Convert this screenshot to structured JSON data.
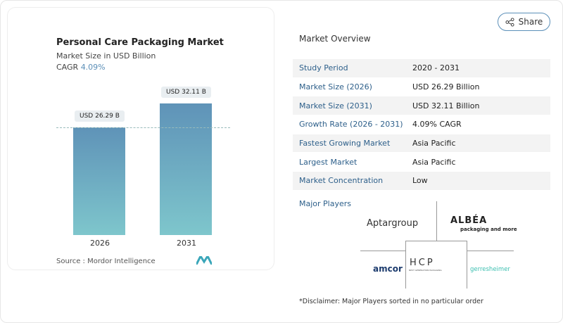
{
  "chart_data": {
    "type": "bar",
    "title": "Personal Care Packaging Market",
    "subtitle": "Market Size in USD Billion",
    "cagr_label": "CAGR",
    "cagr_value": "4.09%",
    "categories": [
      "2026",
      "2031"
    ],
    "values": [
      26.29,
      32.11
    ],
    "data_labels": [
      "USD 26.29 B",
      "USD 32.11 B"
    ],
    "colors": [
      "#5f93b8",
      "#7ec6cc"
    ],
    "source": "Source :  Mordor Intelligence"
  },
  "share_label": "Share",
  "overview": {
    "title": "Market Overview",
    "rows": [
      {
        "k": "Study Period",
        "v": "2020 - 2031"
      },
      {
        "k": "Market Size (2026)",
        "v": "USD 26.29 Billion"
      },
      {
        "k": "Market Size (2031)",
        "v": "USD 32.11 Billion"
      },
      {
        "k": "Growth Rate (2026 - 2031)",
        "v": "4.09% CAGR"
      },
      {
        "k": "Fastest Growing Market",
        "v": "Asia Pacific"
      },
      {
        "k": "Largest Market",
        "v": "Asia Pacific"
      },
      {
        "k": "Market Concentration",
        "v": "Low"
      }
    ]
  },
  "players": {
    "title": "Major Players",
    "logos": [
      "Aptargroup",
      "ALBÉA",
      "packaging and more",
      "amcor",
      "HCP",
      "NEXT GENERATION PACKAGING",
      "gerresheimer"
    ]
  },
  "disclaimer": "*Disclaimer: Major Players sorted in no particular order"
}
